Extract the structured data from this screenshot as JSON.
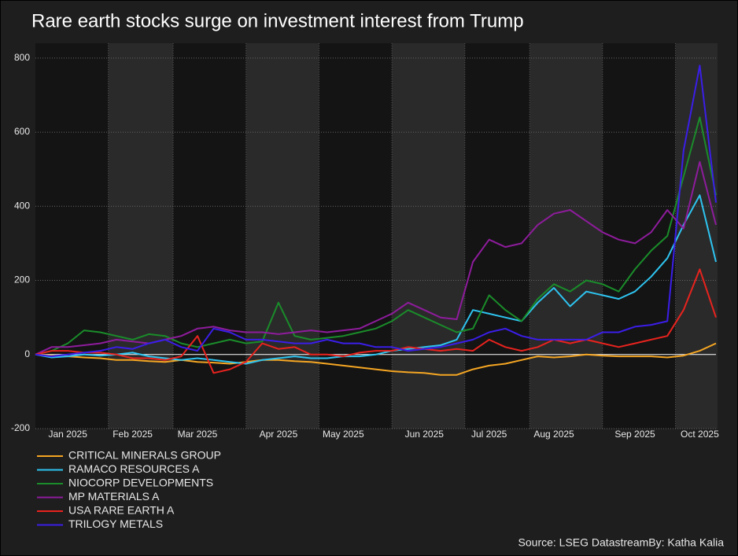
{
  "chart_data": {
    "type": "line",
    "title": "Rare earth stocks surge on investment interest from Trump",
    "source": "Source: LSEG DatastreamBy: Katha Kalia",
    "categories": [
      null,
      null,
      "Jan 2025",
      null,
      null,
      null,
      "Feb 2025",
      null,
      null,
      null,
      "Mar 2025",
      null,
      null,
      null,
      null,
      "Apr 2025",
      null,
      null,
      null,
      "May 2025",
      null,
      null,
      null,
      null,
      "Jun 2025",
      null,
      null,
      null,
      "Jul 2025",
      null,
      null,
      null,
      "Aug 2025",
      null,
      null,
      null,
      null,
      "Sep 2025",
      null,
      null,
      null,
      "Oct 2025",
      null
    ],
    "ylim": [
      -200,
      840
    ],
    "yticks": [
      -200,
      0,
      200,
      400,
      600,
      800
    ],
    "grid": true,
    "series": [
      {
        "name": "CRITICAL MINERALS GROUP",
        "color": "#f5a623",
        "values": [
          0,
          -3,
          -5,
          -8,
          -10,
          -15,
          -15,
          -18,
          -20,
          -15,
          -20,
          -22,
          -25,
          -20,
          -15,
          -15,
          -18,
          -20,
          -25,
          -30,
          -35,
          -40,
          -45,
          -48,
          -50,
          -55,
          -55,
          -40,
          -30,
          -25,
          -15,
          -5,
          -8,
          -5,
          0,
          -3,
          -5,
          -5,
          -5,
          -8,
          -3,
          10,
          30
        ]
      },
      {
        "name": "RAMACO RESOURCES A",
        "color": "#2ec4f0",
        "values": [
          0,
          -8,
          -5,
          0,
          -3,
          0,
          5,
          -5,
          -10,
          -15,
          -10,
          -15,
          -20,
          -25,
          -15,
          -10,
          -5,
          -10,
          -10,
          -5,
          -5,
          0,
          10,
          15,
          20,
          25,
          40,
          120,
          110,
          100,
          90,
          140,
          180,
          130,
          170,
          160,
          150,
          170,
          210,
          260,
          350,
          430,
          250
        ]
      },
      {
        "name": "NIOCORP DEVELOPMENTS",
        "color": "#1a8c2a",
        "values": [
          0,
          10,
          30,
          65,
          60,
          50,
          40,
          55,
          50,
          30,
          20,
          30,
          40,
          30,
          35,
          140,
          50,
          40,
          45,
          50,
          60,
          70,
          90,
          120,
          100,
          80,
          60,
          70,
          160,
          120,
          90,
          150,
          190,
          170,
          200,
          190,
          170,
          230,
          280,
          320,
          480,
          640,
          430
        ]
      },
      {
        "name": "MP MATERIALS A",
        "color": "#8e1c9c",
        "values": [
          0,
          20,
          20,
          25,
          30,
          40,
          35,
          30,
          40,
          50,
          70,
          75,
          65,
          60,
          60,
          55,
          60,
          65,
          60,
          65,
          70,
          90,
          110,
          140,
          120,
          100,
          95,
          250,
          310,
          290,
          300,
          350,
          380,
          390,
          360,
          330,
          310,
          300,
          330,
          390,
          340,
          520,
          350
        ]
      },
      {
        "name": "USA RARE EARTH A",
        "color": "#e8231e",
        "values": [
          0,
          10,
          10,
          5,
          5,
          0,
          -10,
          -10,
          -15,
          -5,
          50,
          -50,
          -40,
          -20,
          30,
          15,
          20,
          0,
          0,
          -5,
          5,
          10,
          10,
          20,
          15,
          10,
          15,
          10,
          40,
          20,
          10,
          20,
          40,
          30,
          40,
          30,
          20,
          30,
          40,
          50,
          120,
          230,
          100
        ]
      },
      {
        "name": "TRILOGY METALS",
        "color": "#3a1ee8",
        "values": [
          0,
          -5,
          0,
          5,
          10,
          20,
          15,
          30,
          40,
          20,
          10,
          70,
          60,
          40,
          40,
          35,
          30,
          30,
          40,
          30,
          30,
          20,
          20,
          10,
          15,
          20,
          30,
          40,
          60,
          70,
          50,
          40,
          40,
          40,
          40,
          60,
          60,
          75,
          80,
          90,
          550,
          780,
          410
        ]
      }
    ]
  }
}
